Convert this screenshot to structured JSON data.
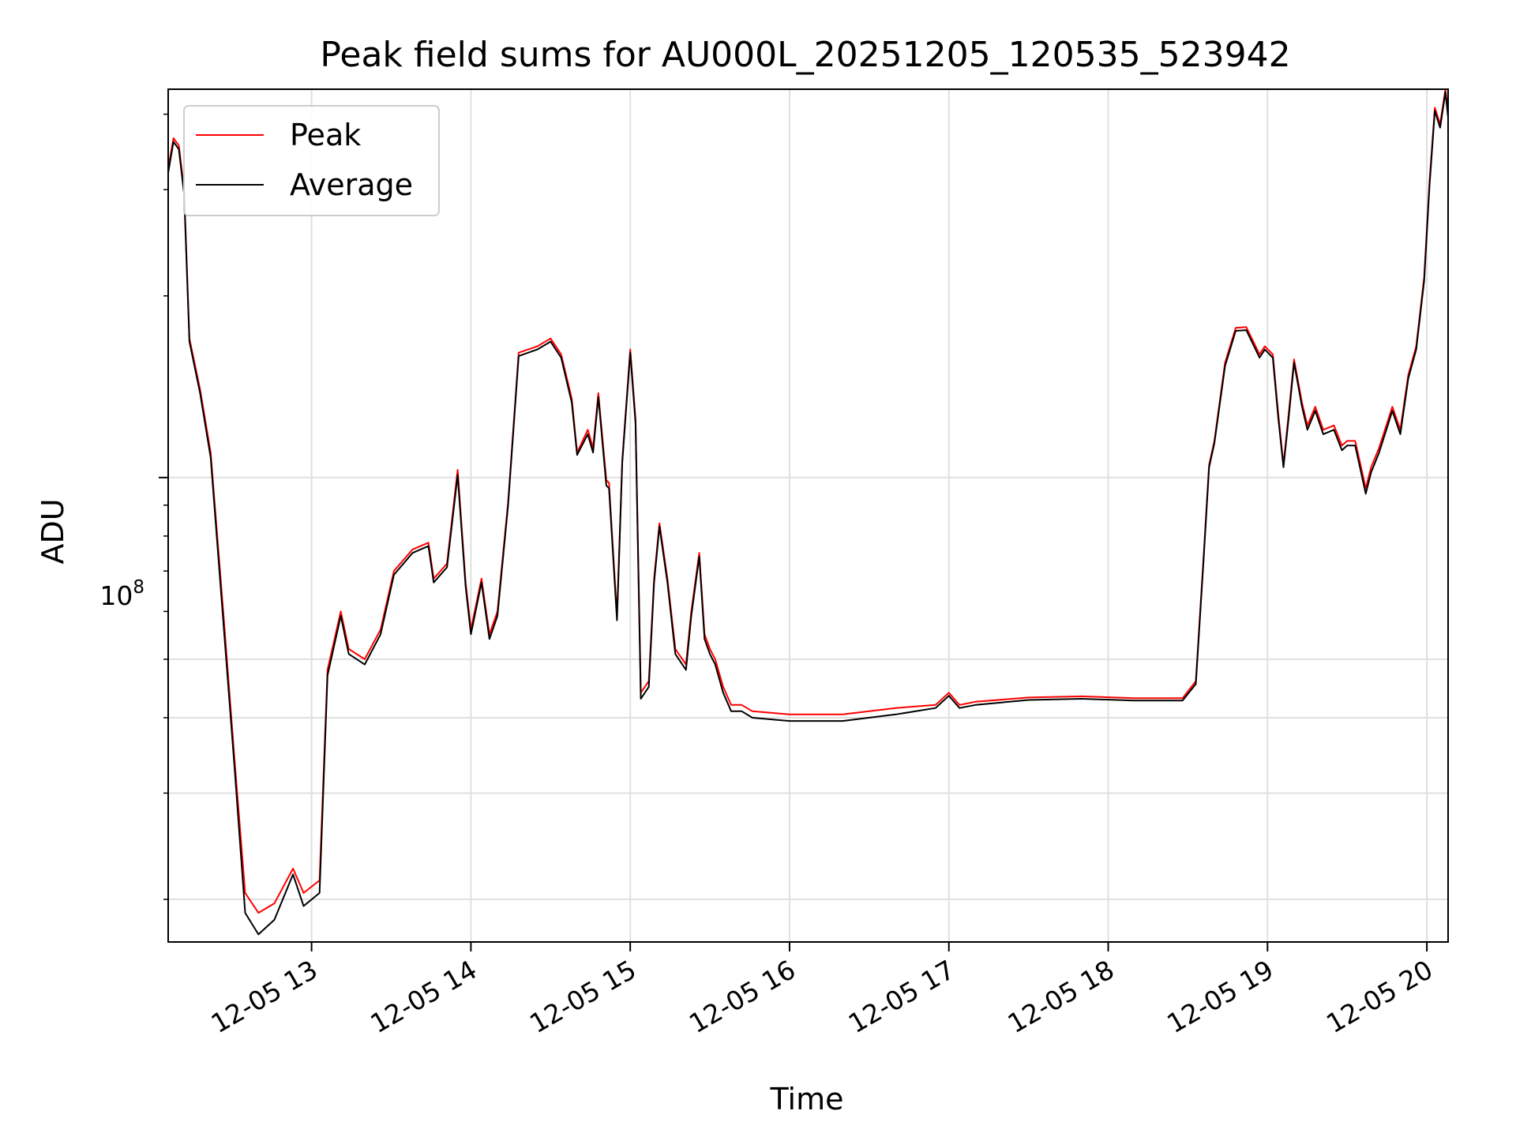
{
  "chart_data": {
    "type": "line",
    "title": "Peak field sums for AU000L_20251205_120535_523942",
    "xlabel": "Time",
    "ylabel": "ADU",
    "yscale": "log",
    "xlim": [
      "2025-12-05T12:06",
      "2025-12-05T20:08"
    ],
    "ylim": [
      17000000,
      440000000
    ],
    "xticks": [
      "12-05 13",
      "12-05 14",
      "12-05 15",
      "12-05 16",
      "12-05 17",
      "12-05 18",
      "12-05 19",
      "12-05 20"
    ],
    "yticks": {
      "major": [
        "10^8"
      ],
      "minor": [
        20000000,
        30000000,
        40000000,
        50000000,
        60000000,
        70000000,
        80000000,
        90000000,
        200000000,
        300000000,
        400000000
      ]
    },
    "grid": true,
    "legend": {
      "position": "top-left",
      "entries": [
        {
          "name": "Peak",
          "color": "#ff0000"
        },
        {
          "name": "Average",
          "color": "#000000"
        }
      ]
    },
    "series": [
      {
        "name": "Peak",
        "color": "#ff0000",
        "x": [
          "2025-12-05T12:06",
          "2025-12-05T12:08",
          "2025-12-05T12:10",
          "2025-12-05T12:12",
          "2025-12-05T12:14",
          "2025-12-05T12:18",
          "2025-12-05T12:22",
          "2025-12-05T12:27",
          "2025-12-05T12:31",
          "2025-12-05T12:35",
          "2025-12-05T12:40",
          "2025-12-05T12:46",
          "2025-12-05T12:53",
          "2025-12-05T12:57",
          "2025-12-05T13:03",
          "2025-12-05T13:06",
          "2025-12-05T13:11",
          "2025-12-05T13:14",
          "2025-12-05T13:20",
          "2025-12-05T13:26",
          "2025-12-05T13:31",
          "2025-12-05T13:38",
          "2025-12-05T13:44",
          "2025-12-05T13:46",
          "2025-12-05T13:51",
          "2025-12-05T13:55",
          "2025-12-05T13:58",
          "2025-12-05T14:00",
          "2025-12-05T14:04",
          "2025-12-05T14:07",
          "2025-12-05T14:10",
          "2025-12-05T14:14",
          "2025-12-05T14:18",
          "2025-12-05T14:25",
          "2025-12-05T14:30",
          "2025-12-05T14:34",
          "2025-12-05T14:38",
          "2025-12-05T14:40",
          "2025-12-05T14:44",
          "2025-12-05T14:46",
          "2025-12-05T14:48",
          "2025-12-05T14:51",
          "2025-12-05T14:52",
          "2025-12-05T14:55",
          "2025-12-05T14:57",
          "2025-12-05T15:00",
          "2025-12-05T15:02",
          "2025-12-05T15:04",
          "2025-12-05T15:07",
          "2025-12-05T15:09",
          "2025-12-05T15:11",
          "2025-12-05T15:14",
          "2025-12-05T15:17",
          "2025-12-05T15:21",
          "2025-12-05T15:23",
          "2025-12-05T15:26",
          "2025-12-05T15:28",
          "2025-12-05T15:30",
          "2025-12-05T15:32",
          "2025-12-05T15:35",
          "2025-12-05T15:38",
          "2025-12-05T15:42",
          "2025-12-05T15:46",
          "2025-12-05T16:00",
          "2025-12-05T16:20",
          "2025-12-05T16:40",
          "2025-12-05T16:55",
          "2025-12-05T17:00",
          "2025-12-05T17:04",
          "2025-12-05T17:10",
          "2025-12-05T17:30",
          "2025-12-05T17:50",
          "2025-12-05T18:10",
          "2025-12-05T18:28",
          "2025-12-05T18:33",
          "2025-12-05T18:36",
          "2025-12-05T18:38",
          "2025-12-05T18:40",
          "2025-12-05T18:44",
          "2025-12-05T18:48",
          "2025-12-05T18:52",
          "2025-12-05T18:57",
          "2025-12-05T18:59",
          "2025-12-05T19:02",
          "2025-12-05T19:04",
          "2025-12-05T19:06",
          "2025-12-05T19:08",
          "2025-12-05T19:10",
          "2025-12-05T19:13",
          "2025-12-05T19:15",
          "2025-12-05T19:18",
          "2025-12-05T19:21",
          "2025-12-05T19:25",
          "2025-12-05T19:28",
          "2025-12-05T19:30",
          "2025-12-05T19:33",
          "2025-12-05T19:37",
          "2025-12-05T19:39",
          "2025-12-05T19:42",
          "2025-12-05T19:47",
          "2025-12-05T19:50",
          "2025-12-05T19:53",
          "2025-12-05T19:56",
          "2025-12-05T19:59",
          "2025-12-05T20:01",
          "2025-12-05T20:03",
          "2025-12-05T20:05",
          "2025-12-05T20:07",
          "2025-12-05T20:08"
        ],
        "values": [
          325000000,
          365000000,
          355000000,
          300000000,
          170000000,
          140000000,
          110000000,
          58000000,
          34000000,
          20500000,
          19000000,
          19700000,
          22500000,
          20500000,
          21500000,
          48000000,
          60000000,
          52000000,
          50000000,
          56000000,
          70000000,
          76000000,
          78000000,
          68000000,
          72000000,
          103000000,
          67000000,
          56000000,
          68000000,
          55000000,
          60000000,
          91000000,
          161000000,
          165000000,
          170000000,
          160000000,
          135000000,
          110000000,
          120000000,
          112000000,
          138000000,
          99000000,
          98000000,
          59000000,
          107000000,
          163000000,
          125000000,
          44000000,
          46000000,
          68000000,
          84000000,
          68000000,
          52000000,
          49000000,
          60000000,
          75000000,
          55000000,
          52000000,
          50000000,
          45000000,
          42000000,
          42000000,
          41000000,
          40500000,
          40500000,
          41500000,
          42000000,
          44000000,
          42000000,
          42500000,
          43200000,
          43400000,
          43100000,
          43100000,
          46000000,
          75000000,
          105000000,
          115000000,
          155000000,
          177000000,
          177500000,
          160000000,
          165000000,
          160000000,
          128000000,
          105000000,
          128000000,
          157000000,
          133000000,
          122000000,
          131000000,
          120000000,
          122000000,
          113000000,
          115000000,
          115000000,
          96000000,
          104000000,
          112000000,
          131000000,
          120000000,
          148000000,
          165000000,
          215000000,
          310000000,
          410000000,
          385000000,
          440000000,
          400000000
        ]
      },
      {
        "name": "Average",
        "color": "#000000",
        "x": [
          "2025-12-05T12:06",
          "2025-12-05T12:08",
          "2025-12-05T12:10",
          "2025-12-05T12:12",
          "2025-12-05T12:14",
          "2025-12-05T12:18",
          "2025-12-05T12:22",
          "2025-12-05T12:27",
          "2025-12-05T12:31",
          "2025-12-05T12:35",
          "2025-12-05T12:40",
          "2025-12-05T12:46",
          "2025-12-05T12:53",
          "2025-12-05T12:57",
          "2025-12-05T13:03",
          "2025-12-05T13:06",
          "2025-12-05T13:11",
          "2025-12-05T13:14",
          "2025-12-05T13:20",
          "2025-12-05T13:26",
          "2025-12-05T13:31",
          "2025-12-05T13:38",
          "2025-12-05T13:44",
          "2025-12-05T13:46",
          "2025-12-05T13:51",
          "2025-12-05T13:55",
          "2025-12-05T13:58",
          "2025-12-05T14:00",
          "2025-12-05T14:04",
          "2025-12-05T14:07",
          "2025-12-05T14:10",
          "2025-12-05T14:14",
          "2025-12-05T14:18",
          "2025-12-05T14:25",
          "2025-12-05T14:30",
          "2025-12-05T14:34",
          "2025-12-05T14:38",
          "2025-12-05T14:40",
          "2025-12-05T14:44",
          "2025-12-05T14:46",
          "2025-12-05T14:48",
          "2025-12-05T14:51",
          "2025-12-05T14:52",
          "2025-12-05T14:55",
          "2025-12-05T14:57",
          "2025-12-05T15:00",
          "2025-12-05T15:02",
          "2025-12-05T15:04",
          "2025-12-05T15:07",
          "2025-12-05T15:09",
          "2025-12-05T15:11",
          "2025-12-05T15:14",
          "2025-12-05T15:17",
          "2025-12-05T15:21",
          "2025-12-05T15:23",
          "2025-12-05T15:26",
          "2025-12-05T15:28",
          "2025-12-05T15:30",
          "2025-12-05T15:32",
          "2025-12-05T15:35",
          "2025-12-05T15:38",
          "2025-12-05T15:42",
          "2025-12-05T15:46",
          "2025-12-05T16:00",
          "2025-12-05T16:20",
          "2025-12-05T16:40",
          "2025-12-05T16:55",
          "2025-12-05T17:00",
          "2025-12-05T17:04",
          "2025-12-05T17:10",
          "2025-12-05T17:30",
          "2025-12-05T17:50",
          "2025-12-05T18:10",
          "2025-12-05T18:28",
          "2025-12-05T18:33",
          "2025-12-05T18:36",
          "2025-12-05T18:38",
          "2025-12-05T18:40",
          "2025-12-05T18:44",
          "2025-12-05T18:48",
          "2025-12-05T18:52",
          "2025-12-05T18:57",
          "2025-12-05T18:59",
          "2025-12-05T19:02",
          "2025-12-05T19:04",
          "2025-12-05T19:06",
          "2025-12-05T19:08",
          "2025-12-05T19:10",
          "2025-12-05T19:13",
          "2025-12-05T19:15",
          "2025-12-05T19:18",
          "2025-12-05T19:21",
          "2025-12-05T19:25",
          "2025-12-05T19:28",
          "2025-12-05T19:30",
          "2025-12-05T19:33",
          "2025-12-05T19:37",
          "2025-12-05T19:39",
          "2025-12-05T19:42",
          "2025-12-05T19:47",
          "2025-12-05T19:50",
          "2025-12-05T19:53",
          "2025-12-05T19:56",
          "2025-12-05T19:59",
          "2025-12-05T20:01",
          "2025-12-05T20:03",
          "2025-12-05T20:05",
          "2025-12-05T20:07",
          "2025-12-05T20:08"
        ],
        "values": [
          320000000,
          360000000,
          350000000,
          295000000,
          168000000,
          138000000,
          108000000,
          56000000,
          33000000,
          19000000,
          17500000,
          18500000,
          22000000,
          19500000,
          20500000,
          47000000,
          59000000,
          51000000,
          49000000,
          55000000,
          69000000,
          75000000,
          77000000,
          67000000,
          71000000,
          101000000,
          66000000,
          55000000,
          67000000,
          54000000,
          59000000,
          90000000,
          159000000,
          163000000,
          168000000,
          158000000,
          133000000,
          109000000,
          118000000,
          110000000,
          136000000,
          97000000,
          96000000,
          58000000,
          106000000,
          161000000,
          123000000,
          43000000,
          45000000,
          67000000,
          83000000,
          67000000,
          51000000,
          48000000,
          59000000,
          74000000,
          54000000,
          51000000,
          49000000,
          44000000,
          41000000,
          41000000,
          40000000,
          39500000,
          39500000,
          40500000,
          41500000,
          43500000,
          41500000,
          42000000,
          42800000,
          43000000,
          42700000,
          42700000,
          45500000,
          74000000,
          104000000,
          114000000,
          153000000,
          175000000,
          175500000,
          158000000,
          163000000,
          158000000,
          126000000,
          104000000,
          126000000,
          155000000,
          131000000,
          120000000,
          129000000,
          118000000,
          120000000,
          111000000,
          113000000,
          113000000,
          94000000,
          102000000,
          110000000,
          129000000,
          118000000,
          146000000,
          163000000,
          212000000,
          305000000,
          405000000,
          380000000,
          435000000,
          395000000
        ]
      }
    ]
  }
}
